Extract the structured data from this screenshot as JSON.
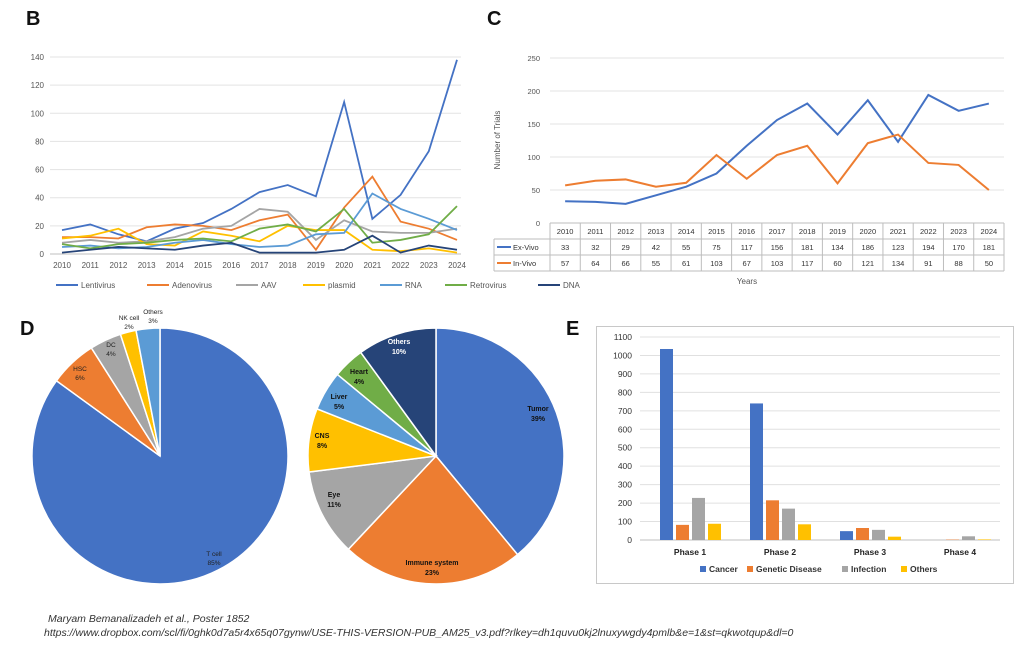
{
  "panels": {
    "b": "B",
    "c": "C",
    "d": "D",
    "e": "E"
  },
  "footer": {
    "citation": "Maryam Bemanalizadeh et al., Poster 1852",
    "url": "https://www.dropbox.com/scl/fi/0ghk0d7a5r4x65q07gynw/USE-THIS-VERSION-PUB_AM25_v3.pdf?rlkey=dh1quvu0kj2lnuxywgdy4pmlb&e=1&st=qkwotqup&dl=0"
  },
  "chart_data": [
    {
      "id": "B",
      "type": "line",
      "title": "",
      "xlabel": "",
      "ylabel": "",
      "x": [
        "2010",
        "2011",
        "2012",
        "2013",
        "2014",
        "2015",
        "2016",
        "2017",
        "2018",
        "2019",
        "2020",
        "2021",
        "2022",
        "2023",
        "2024"
      ],
      "ylim": [
        0,
        140
      ],
      "yticks": [
        0,
        20,
        40,
        60,
        80,
        100,
        120,
        140
      ],
      "grid": true,
      "legend": "bottom",
      "series": [
        {
          "name": "Lentivirus",
          "color": "#4472c4",
          "values": [
            17,
            21,
            14,
            9,
            18,
            22,
            32,
            44,
            49,
            41,
            108,
            25,
            42,
            73,
            138
          ]
        },
        {
          "name": "Adenovirus",
          "color": "#ed7d31",
          "values": [
            12,
            12,
            11,
            19,
            21,
            20,
            17,
            24,
            28,
            3,
            33,
            55,
            23,
            18,
            10
          ]
        },
        {
          "name": "AAV",
          "color": "#a5a5a5",
          "values": [
            8,
            10,
            8,
            9,
            12,
            18,
            20,
            32,
            30,
            10,
            24,
            16,
            15,
            15,
            18
          ]
        },
        {
          "name": "plasmid",
          "color": "#ffc000",
          "values": [
            11,
            13,
            18,
            7,
            6,
            16,
            13,
            9,
            20,
            17,
            17,
            3,
            2,
            4,
            1
          ]
        },
        {
          "name": "RNA",
          "color": "#5b9bd5",
          "values": [
            5,
            6,
            4,
            5,
            8,
            10,
            7,
            5,
            6,
            14,
            15,
            43,
            32,
            25,
            17
          ]
        },
        {
          "name": "Retrovirus",
          "color": "#70ad47",
          "values": [
            7,
            4,
            7,
            8,
            10,
            11,
            9,
            18,
            21,
            16,
            32,
            8,
            10,
            14,
            34
          ]
        },
        {
          "name": "DNA",
          "color": "#264478",
          "values": [
            1,
            3,
            5,
            4,
            3,
            6,
            8,
            1,
            1,
            1,
            3,
            13,
            1,
            6,
            3
          ]
        }
      ]
    },
    {
      "id": "C",
      "type": "line",
      "title": "",
      "xlabel": "Years",
      "ylabel": "Number of Trials",
      "x": [
        "2010",
        "2011",
        "2012",
        "2013",
        "2014",
        "2015",
        "2016",
        "2017",
        "2018",
        "2019",
        "2020",
        "2021",
        "2022",
        "2023",
        "2024"
      ],
      "ylim": [
        0,
        250
      ],
      "yticks": [
        0,
        50,
        100,
        150,
        200,
        250
      ],
      "grid": true,
      "legend": "data-table",
      "series": [
        {
          "name": "Ex-Vivo",
          "color": "#4472c4",
          "values": [
            33,
            32,
            29,
            42,
            55,
            75,
            117,
            156,
            181,
            134,
            186,
            123,
            194,
            170,
            181
          ]
        },
        {
          "name": "In-Vivo",
          "color": "#ed7d31",
          "values": [
            57,
            64,
            66,
            55,
            61,
            103,
            67,
            103,
            117,
            60,
            121,
            134,
            91,
            88,
            50
          ]
        }
      ]
    },
    {
      "id": "D1",
      "type": "pie",
      "title": "",
      "slices": [
        {
          "label": "T cell",
          "pct": "85%",
          "value": 85,
          "color": "#4472c4"
        },
        {
          "label": "HSC",
          "pct": "6%",
          "value": 6,
          "color": "#ed7d31"
        },
        {
          "label": "DC",
          "pct": "4%",
          "value": 4,
          "color": "#a5a5a5"
        },
        {
          "label": "NK cell",
          "pct": "2%",
          "value": 2,
          "color": "#ffc000"
        },
        {
          "label": "Others",
          "pct": "3%",
          "value": 3,
          "color": "#5b9bd5"
        }
      ]
    },
    {
      "id": "D2",
      "type": "pie",
      "title": "",
      "slices": [
        {
          "label": "Tumor",
          "pct": "39%",
          "value": 39,
          "color": "#4472c4"
        },
        {
          "label": "Immune system",
          "pct": "23%",
          "value": 23,
          "color": "#ed7d31"
        },
        {
          "label": "Eye",
          "pct": "11%",
          "value": 11,
          "color": "#a5a5a5"
        },
        {
          "label": "CNS",
          "pct": "8%",
          "value": 8,
          "color": "#ffc000"
        },
        {
          "label": "Liver",
          "pct": "5%",
          "value": 5,
          "color": "#5b9bd5"
        },
        {
          "label": "Heart",
          "pct": "4%",
          "value": 4,
          "color": "#70ad47"
        },
        {
          "label": "Others",
          "pct": "10%",
          "value": 10,
          "color": "#264478"
        }
      ]
    },
    {
      "id": "E",
      "type": "bar",
      "title": "",
      "xlabel": "",
      "ylabel": "",
      "categories": [
        "Phase 1",
        "Phase 2",
        "Phase 3",
        "Phase 4"
      ],
      "ylim": [
        0,
        1100
      ],
      "yticks": [
        0,
        100,
        200,
        300,
        400,
        500,
        600,
        700,
        800,
        900,
        1000,
        1100
      ],
      "grid": true,
      "legend": "bottom",
      "series": [
        {
          "name": "Cancer",
          "color": "#4472c4",
          "values": [
            1035,
            740,
            48,
            0
          ]
        },
        {
          "name": "Genetic Disease",
          "color": "#ed7d31",
          "values": [
            82,
            215,
            65,
            2
          ]
        },
        {
          "name": "Infection",
          "color": "#a5a5a5",
          "values": [
            228,
            170,
            55,
            20
          ]
        },
        {
          "name": "Others",
          "color": "#ffc000",
          "values": [
            88,
            85,
            18,
            3
          ]
        }
      ]
    }
  ]
}
